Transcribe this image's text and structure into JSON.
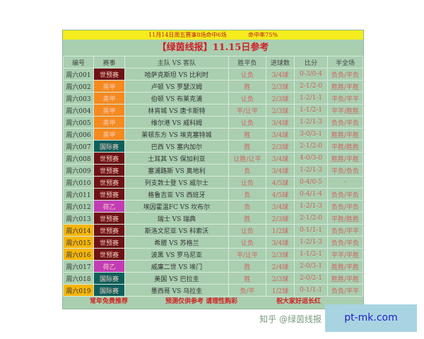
{
  "top_banner": {
    "left": "11月14日周五赛事8场命中6场",
    "right": "命中率75%"
  },
  "title": "【绿茵线报】11.15日参考",
  "headers": [
    "编号",
    "赛事",
    "主队 VS 客队",
    "胜平负",
    "进球数",
    "比分",
    "半全场"
  ],
  "league_colors": {
    "世预赛": "#6e1216",
    "英甲": "#f6891f",
    "国际赛": "#0f5f5c",
    "荷乙": "#c23db5"
  },
  "highlight_color": "#f5b60c",
  "rows": [
    {
      "id": "周六001",
      "league": "世预赛",
      "match": "哈萨克斯坦 VS 比利时",
      "result": "让负",
      "goals": "3/4球",
      "score": "0-3/0-4",
      "half_full": "负负/平负",
      "hl": false
    },
    {
      "id": "周六002",
      "league": "英甲",
      "match": "卢顿 VS 罗瑟汉姆",
      "result": "胜",
      "goals": "2/3球",
      "score": "2-1/2-0",
      "half_full": "胜胜/平胜",
      "hl": false
    },
    {
      "id": "周六003",
      "league": "英甲",
      "match": "伯顿 VS 布莱克浦",
      "result": "让负",
      "goals": "2/3球",
      "score": "1-2/1-1",
      "half_full": "平负/平平",
      "hl": false
    },
    {
      "id": "周六004",
      "league": "英甲",
      "match": "林肯城 VS 唐卡斯特",
      "result": "平/让平",
      "goals": "2/3球",
      "score": "1-1/2-1",
      "half_full": "平平/胜胜",
      "hl": false
    },
    {
      "id": "周六005",
      "league": "英甲",
      "match": "维尔港 VS 威科姆",
      "result": "让负",
      "goals": "3/4球",
      "score": "1-2/1-3",
      "half_full": "负负/平负",
      "hl": false
    },
    {
      "id": "周六006",
      "league": "英甲",
      "match": "莱顿东方 VS 埃克塞特城",
      "result": "胜",
      "goals": "3/4球",
      "score": "3-0/3-1",
      "half_full": "胜胜/平胜",
      "hl": false
    },
    {
      "id": "周六007",
      "league": "国际赛",
      "match": "巴西 VS 塞内加尔",
      "result": "胜",
      "goals": "2/3球",
      "score": "2-1/2-0",
      "half_full": "平胜/胜胜",
      "hl": false
    },
    {
      "id": "周六008",
      "league": "世预赛",
      "match": "土耳其 VS 保加利亚",
      "result": "让胜/让平",
      "goals": "3/4球",
      "score": "4-0/3-0",
      "half_full": "胜胜/平胜",
      "hl": false
    },
    {
      "id": "周六009",
      "league": "世预赛",
      "match": "塞浦路斯 VS 奥地利",
      "result": "负",
      "goals": "3/4球",
      "score": "1-2/1-3",
      "half_full": "平负/负负",
      "hl": false
    },
    {
      "id": "周六010",
      "league": "世预赛",
      "match": "列支敦士登 VS 威尔士",
      "result": "让负",
      "goals": "4/5球",
      "score": "0-4/0-5",
      "half_full": "-",
      "hl": false
    },
    {
      "id": "周六011",
      "league": "世预赛",
      "match": "格鲁吉亚 VS 西班牙",
      "result": "负",
      "goals": "4/5球",
      "score": "0-4/1-4",
      "half_full": "负负/平负",
      "hl": false
    },
    {
      "id": "周六012",
      "league": "荷乙",
      "match": "埃因霍温FC VS 坎布尔",
      "result": "负",
      "goals": "3/4球",
      "score": "1-2/1-3",
      "half_full": "负负/平负",
      "hl": false
    },
    {
      "id": "周六013",
      "league": "世预赛",
      "match": "瑞士 VS 瑞典",
      "result": "胜",
      "goals": "2/3球",
      "score": "2-1/2-0",
      "half_full": "平胜/胜胜",
      "hl": false
    },
    {
      "id": "周六014",
      "league": "世预赛",
      "match": "斯洛文尼亚 VS 科索沃",
      "result": "让负",
      "goals": "1/2球",
      "score": "0-1/1-1",
      "half_full": "负负/平平",
      "hl": true
    },
    {
      "id": "周六015",
      "league": "世预赛",
      "match": "希腊 VS 苏格兰",
      "result": "让负",
      "goals": "3/4球",
      "score": "1-2/1-3",
      "half_full": "负负/平负",
      "hl": true
    },
    {
      "id": "周六016",
      "league": "世预赛",
      "match": "波黑 VS 罗马尼亚",
      "result": "平/让平",
      "goals": "2/3球",
      "score": "1-1/2-1",
      "half_full": "平平/平胜",
      "hl": true
    },
    {
      "id": "周六017",
      "league": "荷乙",
      "match": "威廉二世 VS 埃门",
      "result": "胜",
      "goals": "2/4球",
      "score": "2-0/3-1",
      "half_full": "胜胜/平胜",
      "hl": false
    },
    {
      "id": "周六018",
      "league": "国际赛",
      "match": "美国 VS 巴拉圭",
      "result": "胜",
      "goals": "2/3球",
      "score": "2-0/2-1",
      "half_full": "胜胜/平胜",
      "hl": false
    },
    {
      "id": "周六019",
      "league": "国际赛",
      "match": "墨西哥 VS 乌拉圭",
      "result": "负/平",
      "goals": "1/2球",
      "score": "0-1/1-1",
      "half_full": "负负/平平",
      "hl": true
    }
  ],
  "footer": {
    "left": "常年免费推荐",
    "middle": "预测仅供参考  请理性购彩",
    "right": "祝大家好运长红"
  },
  "watermark": "知乎 @绿茵线报",
  "site_badge": "pt-mk.com"
}
